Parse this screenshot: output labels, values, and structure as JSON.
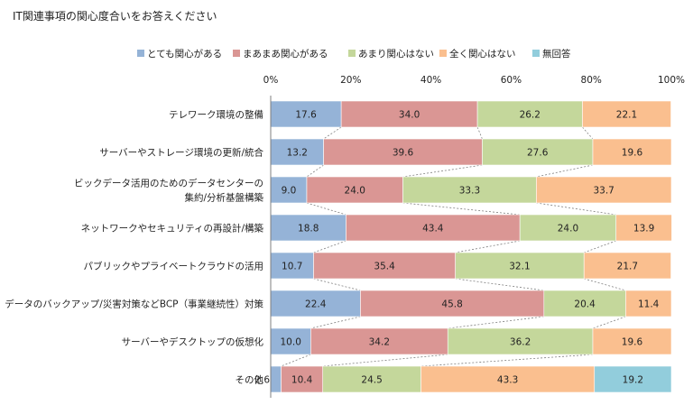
{
  "chart_data": {
    "type": "bar",
    "orientation": "horizontal",
    "stacked": true,
    "percent_stacked": true,
    "title": "IT関連事項の関心度合いをお答えください",
    "xlim": [
      0,
      100
    ],
    "x_ticks": [
      "0%",
      "20%",
      "40%",
      "60%",
      "80%",
      "100%"
    ],
    "x_tick_values": [
      0,
      20,
      40,
      60,
      80,
      100
    ],
    "legend_position": "top",
    "grid": false,
    "categories": [
      [
        "テレワーク環境の整備"
      ],
      [
        "サーバーやストレージ環境の更新/統合"
      ],
      [
        "ビックデータ活用のためのデータセンターの",
        "集約/分析基盤構築"
      ],
      [
        "ネットワークやセキュリティの再設計/構築"
      ],
      [
        "パブリックやプライベートクラウドの活用"
      ],
      [
        "データのバックアップ/災害対策などBCP（事業継続性）対策"
      ],
      [
        "サーバーやデスクトップの仮想化"
      ],
      [
        "その他"
      ]
    ],
    "series": [
      {
        "name": "とても関心がある",
        "color": "#95b3d7",
        "values": [
          17.6,
          13.2,
          9.0,
          18.8,
          10.7,
          22.4,
          10.0,
          2.6
        ]
      },
      {
        "name": "まあまあ関心がある",
        "color": "#da9694",
        "values": [
          34.0,
          39.6,
          24.0,
          43.4,
          35.4,
          45.8,
          34.2,
          10.4
        ]
      },
      {
        "name": "あまり関心はない",
        "color": "#c4d79b",
        "values": [
          26.2,
          27.6,
          33.3,
          24.0,
          32.1,
          20.4,
          36.2,
          24.5
        ]
      },
      {
        "name": "全く関心はない",
        "color": "#fabf8f",
        "values": [
          22.1,
          19.6,
          33.7,
          13.9,
          21.7,
          11.4,
          19.6,
          43.3
        ]
      },
      {
        "name": "無回答",
        "color": "#92cddc",
        "values": [
          0,
          0,
          0,
          0,
          0,
          0,
          0,
          19.2
        ]
      }
    ]
  }
}
